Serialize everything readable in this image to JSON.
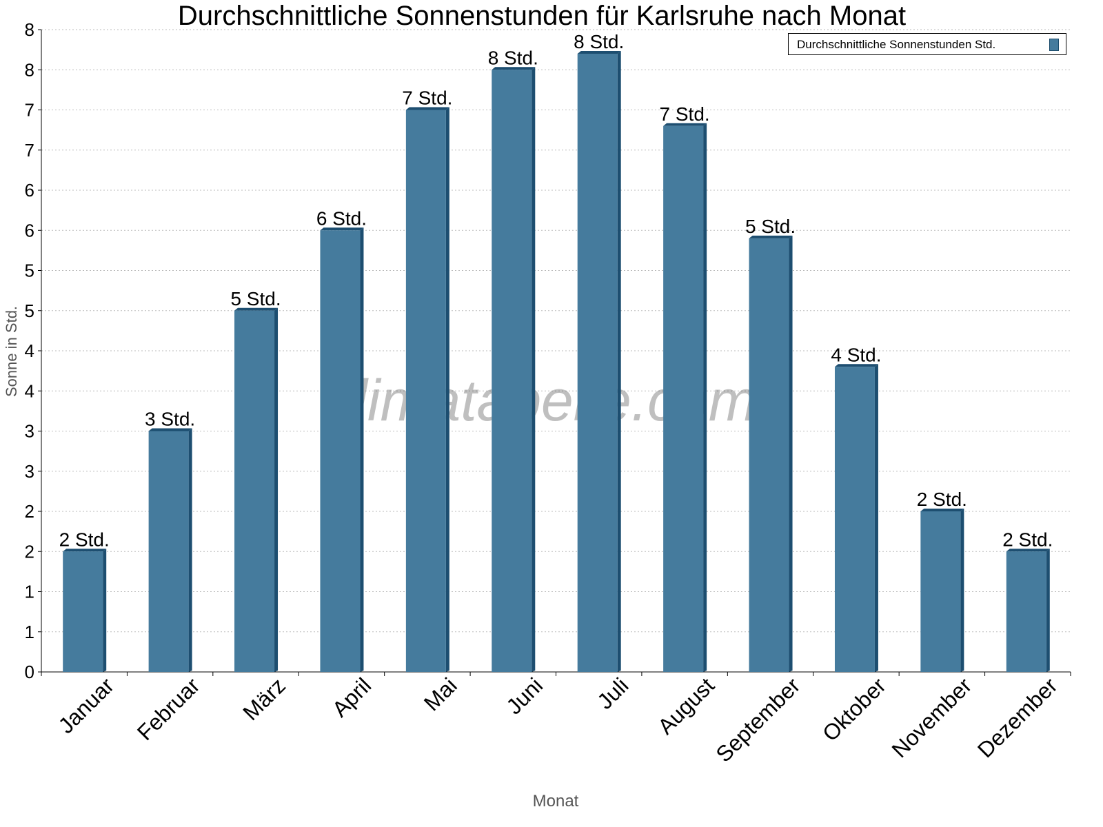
{
  "chart_data": {
    "type": "bar",
    "title": "Durchschnittliche Sonnenstunden für Karlsruhe nach Monat",
    "xlabel": "Monat",
    "ylabel": "Sonne in Std.",
    "categories": [
      "Januar",
      "Februar",
      "März",
      "April",
      "Mai",
      "Juni",
      "Juli",
      "August",
      "September",
      "Oktober",
      "November",
      "Dezember"
    ],
    "series": [
      {
        "name": "Durchschnittliche Sonnenstunden Std.",
        "values": [
          1.5,
          3.0,
          4.5,
          5.5,
          7.0,
          7.5,
          7.7,
          6.8,
          5.4,
          3.8,
          2.0,
          1.5
        ],
        "labels": [
          "2 Std.",
          "3 Std.",
          "5 Std.",
          "6 Std.",
          "7 Std.",
          "8 Std.",
          "8 Std.",
          "7 Std.",
          "5 Std.",
          "4 Std.",
          "2 Std.",
          "2 Std."
        ]
      }
    ],
    "ylim": [
      0,
      8
    ],
    "yticks": [
      0,
      0.5,
      1,
      1.5,
      2,
      2.5,
      3,
      3.5,
      4,
      4.5,
      5,
      5.5,
      6,
      6.5,
      7,
      7.5,
      8
    ],
    "ytick_labels": [
      "0",
      "1",
      "1",
      "2",
      "2",
      "3",
      "3",
      "4",
      "4",
      "5",
      "5",
      "6",
      "6",
      "7",
      "7",
      "8",
      "8"
    ],
    "grid": true,
    "legend": "top-right",
    "watermark": "klimatabelle.com",
    "colors": {
      "bar": "#457b9d",
      "bar_side": "#1d4e70"
    }
  }
}
